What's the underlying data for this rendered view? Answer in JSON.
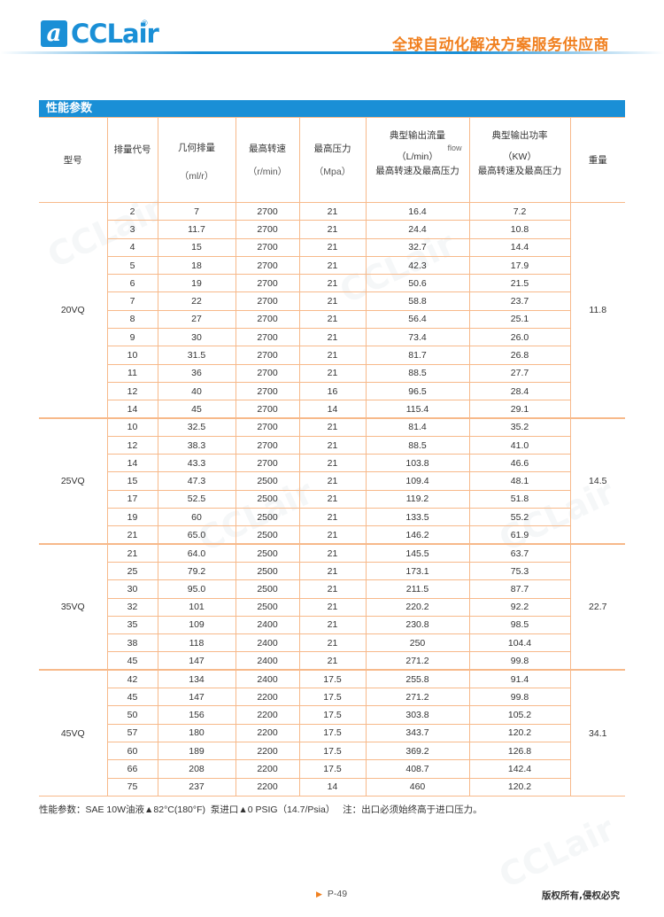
{
  "header": {
    "logo_text": "CCLair",
    "logo_mark": "a",
    "logo_reg": "®",
    "slogan": "全球自动化解决方案服务供应商"
  },
  "section_title": "性能参数",
  "table": {
    "headers": {
      "model": "型号",
      "code": "排量代号",
      "displacement": "几何排量",
      "displacement_unit": "（ml/r）",
      "speed": "最高转速",
      "speed_unit": "（r/min）",
      "pressure": "最高压力",
      "pressure_unit": "（Mpa）",
      "flow": "典型输出流量",
      "flow_tag": "flow",
      "flow_unit": "（L/min）",
      "flow_cond": "最高转速及最高压力",
      "power": "典型输出功率",
      "power_unit": "（KW）",
      "power_cond": "最高转速及最高压力",
      "weight": "重量"
    },
    "groups": [
      {
        "model": "20VQ",
        "weight": "11.8",
        "rows": [
          [
            "2",
            "7",
            "2700",
            "21",
            "16.4",
            "7.2"
          ],
          [
            "3",
            "11.7",
            "2700",
            "21",
            "24.4",
            "10.8"
          ],
          [
            "4",
            "15",
            "2700",
            "21",
            "32.7",
            "14.4"
          ],
          [
            "5",
            "18",
            "2700",
            "21",
            "42.3",
            "17.9"
          ],
          [
            "6",
            "19",
            "2700",
            "21",
            "50.6",
            "21.5"
          ],
          [
            "7",
            "22",
            "2700",
            "21",
            "58.8",
            "23.7"
          ],
          [
            "8",
            "27",
            "2700",
            "21",
            "56.4",
            "25.1"
          ],
          [
            "9",
            "30",
            "2700",
            "21",
            "73.4",
            "26.0"
          ],
          [
            "10",
            "31.5",
            "2700",
            "21",
            "81.7",
            "26.8"
          ],
          [
            "11",
            "36",
            "2700",
            "21",
            "88.5",
            "27.7"
          ],
          [
            "12",
            "40",
            "2700",
            "16",
            "96.5",
            "28.4"
          ],
          [
            "14",
            "45",
            "2700",
            "14",
            "115.4",
            "29.1"
          ]
        ]
      },
      {
        "model": "25VQ",
        "weight": "14.5",
        "rows": [
          [
            "10",
            "32.5",
            "2700",
            "21",
            "81.4",
            "35.2"
          ],
          [
            "12",
            "38.3",
            "2700",
            "21",
            "88.5",
            "41.0"
          ],
          [
            "14",
            "43.3",
            "2700",
            "21",
            "103.8",
            "46.6"
          ],
          [
            "15",
            "47.3",
            "2500",
            "21",
            "109.4",
            "48.1"
          ],
          [
            "17",
            "52.5",
            "2500",
            "21",
            "119.2",
            "51.8"
          ],
          [
            "19",
            "60",
            "2500",
            "21",
            "133.5",
            "55.2"
          ],
          [
            "21",
            "65.0",
            "2500",
            "21",
            "146.2",
            "61.9"
          ]
        ]
      },
      {
        "model": "35VQ",
        "weight": "22.7",
        "rows": [
          [
            "21",
            "64.0",
            "2500",
            "21",
            "145.5",
            "63.7"
          ],
          [
            "25",
            "79.2",
            "2500",
            "21",
            "173.1",
            "75.3"
          ],
          [
            "30",
            "95.0",
            "2500",
            "21",
            "211.5",
            "87.7"
          ],
          [
            "32",
            "101",
            "2500",
            "21",
            "220.2",
            "92.2"
          ],
          [
            "35",
            "109",
            "2400",
            "21",
            "230.8",
            "98.5"
          ],
          [
            "38",
            "118",
            "2400",
            "21",
            "250",
            "104.4"
          ],
          [
            "45",
            "147",
            "2400",
            "21",
            "271.2",
            "99.8"
          ]
        ]
      },
      {
        "model": "45VQ",
        "weight": "34.1",
        "rows": [
          [
            "42",
            "134",
            "2400",
            "17.5",
            "255.8",
            "91.4"
          ],
          [
            "45",
            "147",
            "2200",
            "17.5",
            "271.2",
            "99.8"
          ],
          [
            "50",
            "156",
            "2200",
            "17.5",
            "303.8",
            "105.2"
          ],
          [
            "57",
            "180",
            "2200",
            "17.5",
            "343.7",
            "120.2"
          ],
          [
            "60",
            "189",
            "2200",
            "17.5",
            "369.2",
            "126.8"
          ],
          [
            "66",
            "208",
            "2200",
            "17.5",
            "408.7",
            "142.4"
          ],
          [
            "75",
            "237",
            "2200",
            "14",
            "460",
            "120.2"
          ]
        ]
      }
    ]
  },
  "note": "性能参数：SAE 10W油液▲82°C(180°F)  泵进口▲0 PSIG（14.7/Psia）   注：出口必须始终高于进口压力。",
  "footer": {
    "page_marker_icon": "triangle-right",
    "page": "P-49",
    "copyright": "版权所有,侵权必究"
  },
  "colors": {
    "brand_blue": "#1a8fd6",
    "accent_orange": "#f08020",
    "grid_orange": "#f7b98a"
  }
}
